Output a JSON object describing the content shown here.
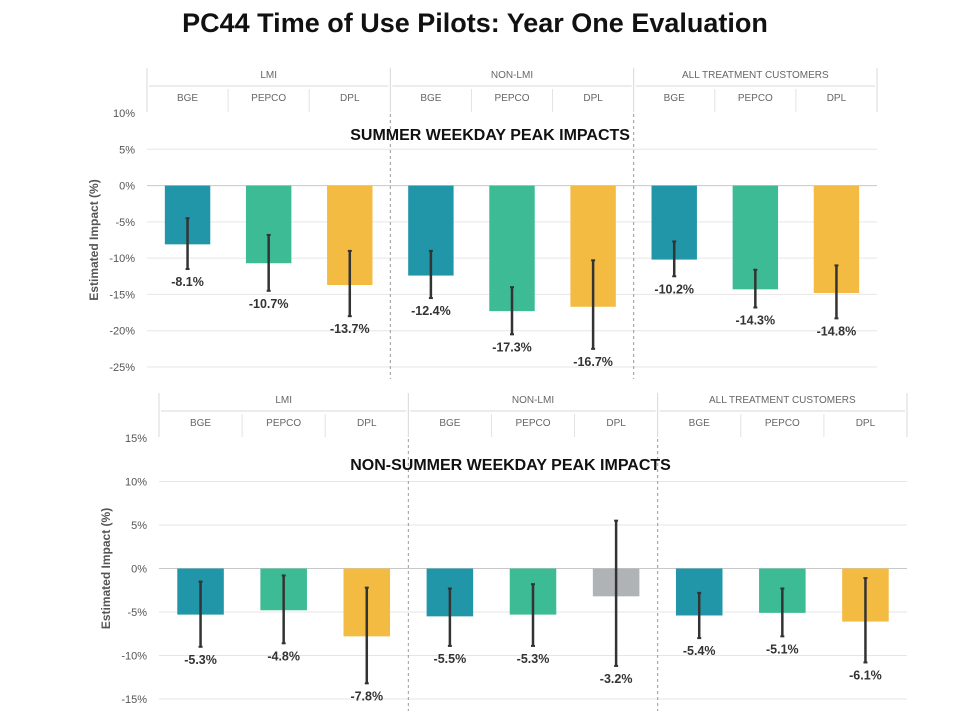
{
  "title": "PC44 Time of Use Pilots: Year One Evaluation",
  "colors": {
    "BGE": "#2196a8",
    "PEPCO": "#3cbb95",
    "DPL": "#f4bb42",
    "DPL_nonLMI_nonsummer": "#b0b3b5"
  },
  "chart_data": [
    {
      "type": "bar",
      "title": "SUMMER WEEKDAY PEAK IMPACTS",
      "ylabel": "Estimated Impact (%)",
      "ylim": [
        -25,
        10
      ],
      "yticks": [
        "10%",
        "5%",
        "0%",
        "-5%",
        "-10%",
        "-15%",
        "-20%",
        "-25%"
      ],
      "grid": true,
      "groups": [
        "LMI",
        "NON-LMI",
        "ALL TREATMENT CUSTOMERS"
      ],
      "categories": [
        "BGE",
        "PEPCO",
        "DPL"
      ],
      "series": [
        {
          "group": "LMI",
          "values": [
            -8.1,
            -10.7,
            -13.7
          ],
          "labels": [
            "-8.1%",
            "-10.7%",
            "-13.7%"
          ],
          "err_low": [
            -11.5,
            -14.5,
            -18.0
          ],
          "err_high": [
            -4.5,
            -6.8,
            -9.0
          ]
        },
        {
          "group": "NON-LMI",
          "values": [
            -12.4,
            -17.3,
            -16.7
          ],
          "labels": [
            "-12.4%",
            "-17.3%",
            "-16.7%"
          ],
          "err_low": [
            -15.5,
            -20.5,
            -22.5
          ],
          "err_high": [
            -9.0,
            -14.0,
            -10.3
          ]
        },
        {
          "group": "ALL TREATMENT CUSTOMERS",
          "values": [
            -10.2,
            -14.3,
            -14.8
          ],
          "labels": [
            "-10.2%",
            "-14.3%",
            "-14.8%"
          ],
          "err_low": [
            -12.5,
            -16.8,
            -18.3
          ],
          "err_high": [
            -7.7,
            -11.6,
            -11.0
          ]
        }
      ]
    },
    {
      "type": "bar",
      "title": "NON-SUMMER WEEKDAY PEAK IMPACTS",
      "ylabel": "Estimated Impact (%)",
      "ylim": [
        -15,
        15
      ],
      "yticks": [
        "15%",
        "10%",
        "5%",
        "0%",
        "-5%",
        "-10%",
        "-15%"
      ],
      "grid": true,
      "groups": [
        "LMI",
        "NON-LMI",
        "ALL TREATMENT CUSTOMERS"
      ],
      "categories": [
        "BGE",
        "PEPCO",
        "DPL"
      ],
      "series": [
        {
          "group": "LMI",
          "values": [
            -5.3,
            -4.8,
            -7.8
          ],
          "labels": [
            "-5.3%",
            "-4.8%",
            "-7.8%"
          ],
          "err_low": [
            -9.0,
            -8.6,
            -13.2
          ],
          "err_high": [
            -1.5,
            -0.8,
            -2.2
          ]
        },
        {
          "group": "NON-LMI",
          "values": [
            -5.5,
            -5.3,
            -3.2
          ],
          "labels": [
            "-5.5%",
            "-5.3%",
            "-3.2%"
          ],
          "err_low": [
            -8.9,
            -8.9,
            -11.2
          ],
          "err_high": [
            -2.3,
            -1.8,
            5.5
          ]
        },
        {
          "group": "ALL TREATMENT CUSTOMERS",
          "values": [
            -5.4,
            -5.1,
            -6.1
          ],
          "labels": [
            "-5.4%",
            "-5.1%",
            "-6.1%"
          ],
          "err_low": [
            -8.0,
            -7.8,
            -10.8
          ],
          "err_high": [
            -2.8,
            -2.3,
            -1.1
          ]
        }
      ]
    }
  ]
}
